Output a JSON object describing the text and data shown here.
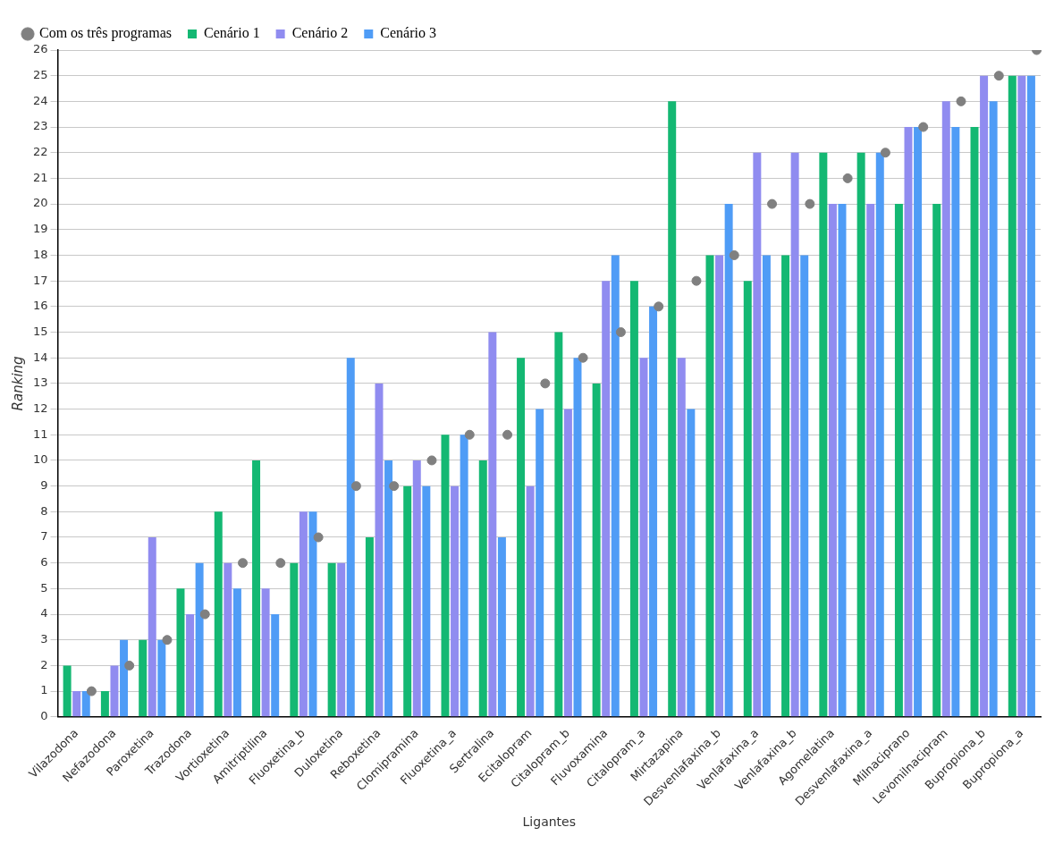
{
  "chart_data": {
    "type": "bar",
    "xlabel": "Ligantes",
    "ylabel": "Ranking",
    "categories": [
      "Vilazodona",
      "Nefazodona",
      "Paroxetina",
      "Trazodona",
      "Vortioxetina",
      "Amitriptilina",
      "Fluoxetina_b",
      "Duloxetina",
      "Reboxetina",
      "Clomipramina",
      "Fluoxetina_a",
      "Sertralina",
      "Ecitalopram",
      "Citalopram_b",
      "Fluvoxamina",
      "Citalopram_a",
      "Mirtazapina",
      "Desvenlafaxina_b",
      "Venlafaxina_a",
      "Venlafaxina_b",
      "Agomelatina",
      "Desvenlafaxina_a",
      "Milnaciprano",
      "Levomilnacipram",
      "Bupropiona_b",
      "Bupropiona_a"
    ],
    "series": [
      {
        "name": "Cenário 1",
        "color": "#14b873",
        "values": [
          2,
          1,
          3,
          5,
          8,
          10,
          6,
          6,
          7,
          9,
          11,
          10,
          14,
          15,
          13,
          17,
          24,
          18,
          17,
          18,
          22,
          22,
          20,
          20,
          23,
          25
        ]
      },
      {
        "name": "Cenário 2",
        "color": "#908cf0",
        "values": [
          1,
          2,
          7,
          4,
          6,
          5,
          8,
          6,
          13,
          10,
          9,
          15,
          9,
          12,
          17,
          14,
          14,
          18,
          22,
          22,
          20,
          20,
          23,
          24,
          25,
          25
        ]
      },
      {
        "name": "Cenário 3",
        "color": "#4f9cf6",
        "values": [
          1,
          3,
          3,
          6,
          5,
          4,
          8,
          14,
          10,
          9,
          11,
          7,
          12,
          14,
          18,
          16,
          12,
          20,
          18,
          18,
          20,
          22,
          23,
          23,
          24,
          25
        ]
      },
      {
        "name": "Com os três programas",
        "type": "scatter",
        "color": "#808080",
        "x": [
          "Vilazodona",
          "Nefazodona",
          "Paroxetina",
          "Trazodona",
          "Vortioxetina",
          "Amitriptilina",
          "Fluoxetina_b",
          "Duloxetina",
          "Reboxetina",
          "Clomipramina",
          "Fluoxetina_a",
          "Sertralina",
          "Ecitalopram",
          "Citalopram_b",
          "Fluvoxamina",
          "Citalopram_a",
          "Mirtazapina",
          "Desvenlafaxina_b",
          "Venlafaxina_a",
          "Venlafaxina_b",
          "Agomelatina",
          "Desvenlafaxina_a",
          "Milnaciprano",
          "Levomilnacipram",
          "Bupropiona_b",
          "Bupropiona_a"
        ],
        "values": [
          1,
          2,
          3,
          4,
          6,
          6,
          7,
          9,
          9,
          10,
          11,
          11,
          13,
          14,
          15,
          16,
          17,
          18,
          20,
          20,
          21,
          22,
          23,
          24,
          25,
          26
        ]
      }
    ],
    "ylim": [
      0,
      26
    ],
    "yticks": [
      0,
      1,
      2,
      3,
      4,
      5,
      6,
      7,
      8,
      9,
      10,
      11,
      12,
      13,
      14,
      15,
      16,
      17,
      18,
      19,
      20,
      21,
      22,
      23,
      24,
      25,
      26
    ],
    "grid": "y",
    "legend": "top left",
    "marker": "circle"
  }
}
